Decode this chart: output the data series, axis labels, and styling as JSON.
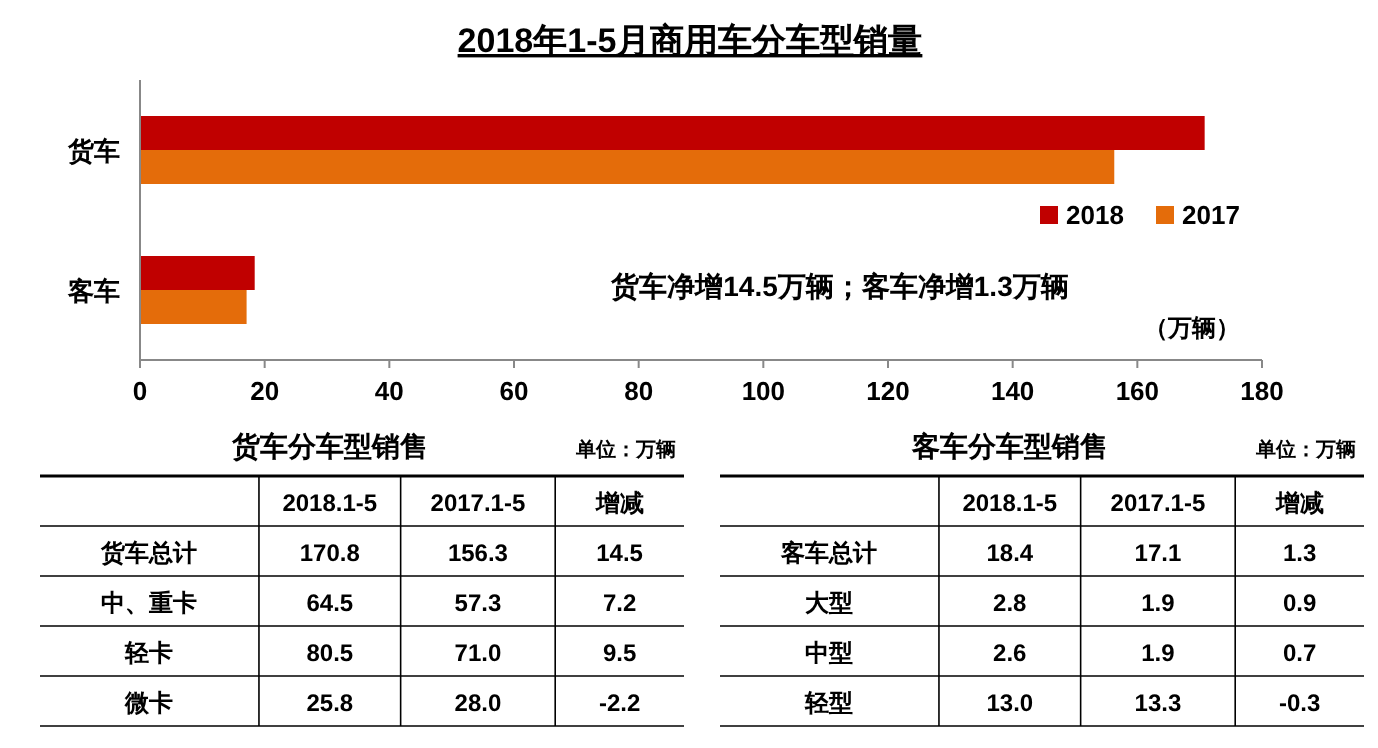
{
  "chart_data": [
    {
      "type": "bar",
      "orientation": "horizontal",
      "title": "2018年1-5月商用车分车型销量",
      "categories": [
        "货车",
        "客车"
      ],
      "series": [
        {
          "name": "2018",
          "color": "#c00000",
          "values": [
            170.8,
            18.4
          ]
        },
        {
          "name": "2017",
          "color": "#e46c0a",
          "values": [
            156.3,
            17.1
          ]
        }
      ],
      "xlim": [
        0,
        180
      ],
      "xticks": [
        0,
        20,
        40,
        60,
        80,
        100,
        120,
        140,
        160,
        180
      ],
      "legend": "right",
      "grid": false,
      "annotations": [
        "货车净增14.5万辆；客车净增1.3万辆",
        "（万辆）"
      ]
    },
    {
      "type": "heatmap",
      "data_labels": true,
      "title": "货车分车型销售",
      "annotations": [
        "单位：万辆"
      ],
      "categories": [
        "2018.1-5",
        "2017.1-5",
        "增减"
      ],
      "y_categories": [
        "货车总计",
        "中、重卡",
        "轻卡",
        "微卡"
      ],
      "cells": [
        [
          170.8,
          156.3,
          14.5
        ],
        [
          64.5,
          57.3,
          7.2
        ],
        [
          80.5,
          71.0,
          9.5
        ],
        [
          25.8,
          28.0,
          -2.2
        ]
      ],
      "cell_labels": [
        [
          "170.8",
          "156.3",
          "14.5"
        ],
        [
          "64.5",
          "57.3",
          "7.2"
        ],
        [
          "80.5",
          "71.0",
          "9.5"
        ],
        [
          "25.8",
          "28.0",
          "-2.2"
        ]
      ]
    },
    {
      "type": "heatmap",
      "data_labels": true,
      "title": "客车分车型销售",
      "annotations": [
        "单位：万辆"
      ],
      "categories": [
        "2018.1-5",
        "2017.1-5",
        "增减"
      ],
      "y_categories": [
        "客车总计",
        "大型",
        "中型",
        "轻型"
      ],
      "cells": [
        [
          18.4,
          17.1,
          1.3
        ],
        [
          2.8,
          1.9,
          0.9
        ],
        [
          2.6,
          1.9,
          0.7
        ],
        [
          13.0,
          13.3,
          -0.3
        ]
      ],
      "cell_labels": [
        [
          "18.4",
          "17.1",
          "1.3"
        ],
        [
          "2.8",
          "1.9",
          "0.9"
        ],
        [
          "2.6",
          "1.9",
          "0.7"
        ],
        [
          "13.0",
          "13.3",
          "-0.3"
        ]
      ]
    }
  ]
}
